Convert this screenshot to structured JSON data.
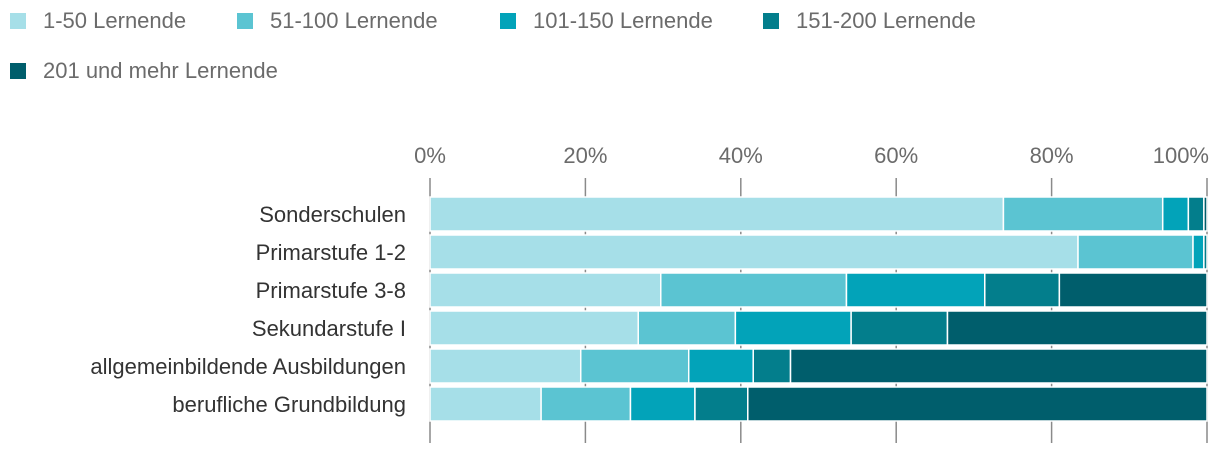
{
  "chart_data": {
    "type": "bar",
    "orientation": "horizontal",
    "stacked": "percent",
    "categories": [
      "Sonderschulen",
      "Primarstufe 1-2",
      "Primarstufe 3-8",
      "Sekundarstufe I",
      "allgemeinbildende Ausbildungen",
      "berufliche Grundbildung"
    ],
    "series": [
      {
        "name": "1-50 Lernende",
        "color": "#a6dfe8",
        "values": [
          73.8,
          83.4,
          29.7,
          26.8,
          19.4,
          14.3
        ]
      },
      {
        "name": "51-100 Lernende",
        "color": "#5bc4d2",
        "values": [
          20.5,
          14.8,
          23.9,
          12.5,
          13.9,
          11.5
        ]
      },
      {
        "name": "101-150 Lernende",
        "color": "#02a3b9",
        "values": [
          3.3,
          1.4,
          17.8,
          14.9,
          8.3,
          8.3
        ]
      },
      {
        "name": "151-200 Lernende",
        "color": "#037e8c",
        "values": [
          2.0,
          0.4,
          9.6,
          12.4,
          4.8,
          6.8
        ]
      },
      {
        "name": "201 und mehr Lernende",
        "color": "#005e6c",
        "values": [
          0.4,
          0.0,
          19.0,
          33.4,
          53.6,
          59.1
        ]
      }
    ],
    "xlim": [
      0,
      100
    ],
    "xticks": [
      "0%",
      "20%",
      "40%",
      "60%",
      "80%",
      "100%"
    ],
    "grid": true,
    "legend": "top-left"
  }
}
